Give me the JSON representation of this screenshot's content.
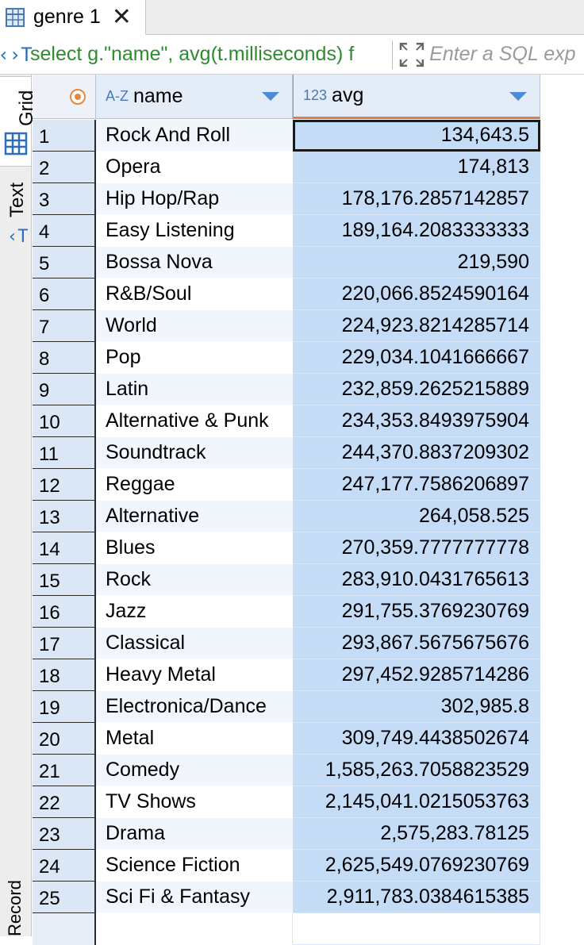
{
  "tab": {
    "title": "genre 1",
    "close": "✕"
  },
  "query": {
    "sql": "select g.\"name\", avg(t.milliseconds) f",
    "filter_placeholder": "Enter a SQL exp"
  },
  "side_panel": {
    "grid": "Grid",
    "text": "Text",
    "record": "Record"
  },
  "columns": [
    {
      "type": "A-Z",
      "label": "name"
    },
    {
      "type": "123",
      "label": "avg"
    }
  ],
  "rows": [
    {
      "n": "1",
      "name": "Rock And Roll",
      "avg": "134,643.5"
    },
    {
      "n": "2",
      "name": "Opera",
      "avg": "174,813"
    },
    {
      "n": "3",
      "name": "Hip Hop/Rap",
      "avg": "178,176.2857142857"
    },
    {
      "n": "4",
      "name": "Easy Listening",
      "avg": "189,164.2083333333"
    },
    {
      "n": "5",
      "name": "Bossa Nova",
      "avg": "219,590"
    },
    {
      "n": "6",
      "name": "R&B/Soul",
      "avg": "220,066.8524590164"
    },
    {
      "n": "7",
      "name": "World",
      "avg": "224,923.8214285714"
    },
    {
      "n": "8",
      "name": "Pop",
      "avg": "229,034.1041666667"
    },
    {
      "n": "9",
      "name": "Latin",
      "avg": "232,859.2625215889"
    },
    {
      "n": "10",
      "name": "Alternative & Punk",
      "avg": "234,353.8493975904"
    },
    {
      "n": "11",
      "name": "Soundtrack",
      "avg": "244,370.8837209302"
    },
    {
      "n": "12",
      "name": "Reggae",
      "avg": "247,177.7586206897"
    },
    {
      "n": "13",
      "name": "Alternative",
      "avg": "264,058.525"
    },
    {
      "n": "14",
      "name": "Blues",
      "avg": "270,359.7777777778"
    },
    {
      "n": "15",
      "name": "Rock",
      "avg": "283,910.0431765613"
    },
    {
      "n": "16",
      "name": "Jazz",
      "avg": "291,755.3769230769"
    },
    {
      "n": "17",
      "name": "Classical",
      "avg": "293,867.5675675676"
    },
    {
      "n": "18",
      "name": "Heavy Metal",
      "avg": "297,452.9285714286"
    },
    {
      "n": "19",
      "name": "Electronica/Dance",
      "avg": "302,985.8"
    },
    {
      "n": "20",
      "name": "Metal",
      "avg": "309,749.4438502674"
    },
    {
      "n": "21",
      "name": "Comedy",
      "avg": "1,585,263.7058823529"
    },
    {
      "n": "22",
      "name": "TV Shows",
      "avg": "2,145,041.0215053763"
    },
    {
      "n": "23",
      "name": "Drama",
      "avg": "2,575,283.78125"
    },
    {
      "n": "24",
      "name": "Science Fiction",
      "avg": "2,625,549.0769230769"
    },
    {
      "n": "25",
      "name": "Sci Fi & Fantasy",
      "avg": "2,911,783.0384615385"
    }
  ],
  "colors": {
    "accent": "#4a8ad8",
    "selected_column": "#c5dcf7",
    "sql_text": "#2f8b2f",
    "header_underline": "#e07b50"
  }
}
